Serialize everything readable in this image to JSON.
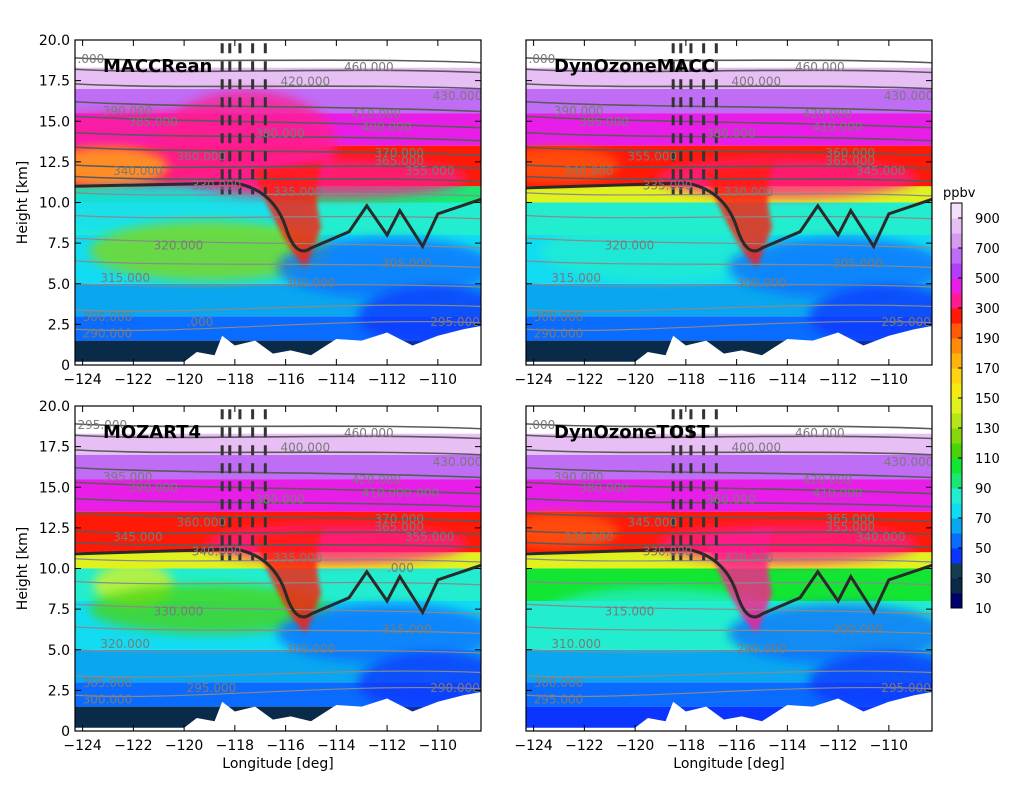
{
  "chart_data": {
    "type": "contour",
    "xlabel": "Longitude [deg]",
    "ylabel": "Height [km]",
    "xlim": [
      -124.3,
      -108.3
    ],
    "ylim": [
      0,
      20
    ],
    "xticks": [
      -124,
      -122,
      -120,
      -118,
      -116,
      -114,
      -112,
      -110
    ],
    "xtick_labels": [
      "−124",
      "−122",
      "−120",
      "−118",
      "−116",
      "−114",
      "−112",
      "−110"
    ],
    "yticks": [
      0,
      2.5,
      5,
      7.5,
      10,
      12.5,
      15,
      17.5,
      20
    ],
    "ytick_labels": [
      "0",
      "2.5",
      "5.0",
      "7.5",
      "10.0",
      "12.5",
      "15.0",
      "17.5",
      "20.0"
    ],
    "colorbar": {
      "label": "ppbv",
      "levels": [
        10,
        20,
        30,
        40,
        50,
        60,
        70,
        80,
        90,
        100,
        110,
        120,
        130,
        140,
        150,
        160,
        170,
        180,
        190,
        200,
        300,
        400,
        500,
        600,
        700,
        800,
        900,
        1000
      ],
      "tick_labels": [
        "10",
        "30",
        "50",
        "70",
        "90",
        "110",
        "130",
        "150",
        "170",
        "190",
        "300",
        "500",
        "700",
        "900"
      ],
      "colors": [
        "#00006e",
        "#0a2a4a",
        "#133e52",
        "#0b34ff",
        "#0a6bff",
        "#0aa6f0",
        "#12dcf2",
        "#22eecf",
        "#19e873",
        "#12e633",
        "#49d40a",
        "#85d80d",
        "#b5e61a",
        "#dff21f",
        "#f5ea12",
        "#ffd311",
        "#ffb310",
        "#ff8a0c",
        "#ff5a08",
        "#ff1a08",
        "#ff1a8f",
        "#e81ee8",
        "#b43dfa",
        "#c06df5",
        "#d79af0",
        "#e8bff5",
        "#f4e0fa"
      ]
    },
    "theta_contours": [
      290,
      295,
      300,
      305,
      315,
      320,
      330,
      335,
      340,
      345,
      355,
      360,
      365,
      370,
      380,
      385,
      390,
      400,
      410,
      420,
      430,
      460
    ],
    "panels": [
      {
        "title": "MACCRean",
        "contour_labels": [
          "460.000",
          "430.000",
          "410.000",
          "400.000",
          "420.000",
          "390.000",
          "385.000",
          "380.000",
          "370.000",
          "365.000",
          "360.000",
          "355.000",
          "340.000",
          "330.000",
          "335.000",
          "320.000",
          "315.000",
          "305.000",
          "300.000",
          "300.000",
          "290.000",
          "295.000",
          ".000",
          ".000"
        ]
      },
      {
        "title": "DynOzoneMACC",
        "contour_labels": [
          "460.000",
          "430.000",
          "420.000",
          "410.000",
          "400.000",
          "390.000",
          "385.000",
          "380.000",
          "360.000",
          "365.000",
          "355.000",
          "345.000",
          "340.000",
          "335.000",
          "330.000",
          "320.000",
          "315.000",
          "305.000",
          "300.000",
          "300.000",
          "290.000",
          "295.000",
          ".000"
        ]
      },
      {
        "title": "MOZART4",
        "contour_labels": [
          "460.000",
          "430.000",
          "420.000",
          "410.000",
          "400.000",
          "395.000",
          "390.000",
          "380.000",
          "370.000",
          "365.000",
          "360.000",
          "355.000",
          "345.000",
          "340.000",
          "335.000",
          "330.000",
          "320.000",
          "315.000",
          "305.000",
          "300.000",
          "300.000",
          "290.000",
          "295.000",
          "295.000",
          ".000",
          ".000"
        ]
      },
      {
        "title": "DynOzoneTOST",
        "contour_labels": [
          "460.000",
          "430.000",
          "420.000",
          "410.000",
          "400.000",
          "390.000",
          "380.000",
          "360.000",
          "365.000",
          "355.000",
          "345.000",
          "340.000",
          "335.000",
          "330.000",
          "320.000",
          "315.000",
          "310.000",
          "300.000",
          "300.000",
          "290.000",
          "295.000",
          "295.000",
          ".000"
        ]
      }
    ]
  }
}
